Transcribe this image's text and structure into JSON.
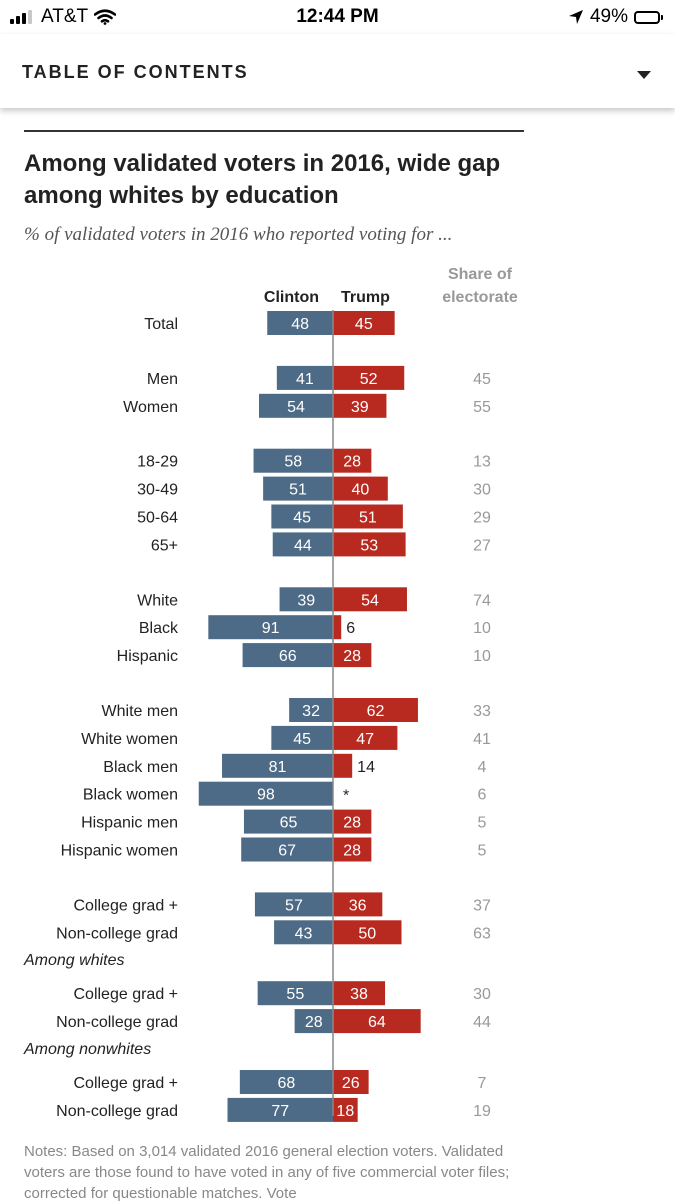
{
  "status_bar": {
    "carrier": "AT&T",
    "time": "12:44 PM",
    "battery": "49%",
    "battery_level": 0.49,
    "signal_bars": 3
  },
  "header": {
    "title": "TABLE OF CONTENTS"
  },
  "chart_data": {
    "type": "bar",
    "title": "Among validated voters in 2016, wide gap among whites by education",
    "subtitle": "% of validated voters in 2016 who reported voting for ...",
    "series": [
      {
        "name": "Clinton",
        "color": "#4d6a86"
      },
      {
        "name": "Trump",
        "color": "#b82a1f"
      }
    ],
    "share_header": "Share of electorate",
    "groups": [
      {
        "heading": "",
        "rows": [
          {
            "label": "Total",
            "clinton": "48",
            "trump": "45",
            "share": ""
          }
        ]
      },
      {
        "heading": "",
        "rows": [
          {
            "label": "Men",
            "clinton": "41",
            "trump": "52",
            "share": "45"
          },
          {
            "label": "Women",
            "clinton": "54",
            "trump": "39",
            "share": "55"
          }
        ]
      },
      {
        "heading": "",
        "rows": [
          {
            "label": "18-29",
            "clinton": "58",
            "trump": "28",
            "share": "13"
          },
          {
            "label": "30-49",
            "clinton": "51",
            "trump": "40",
            "share": "30"
          },
          {
            "label": "50-64",
            "clinton": "45",
            "trump": "51",
            "share": "29"
          },
          {
            "label": "65+",
            "clinton": "44",
            "trump": "53",
            "share": "27"
          }
        ]
      },
      {
        "heading": "",
        "rows": [
          {
            "label": "White",
            "clinton": "39",
            "trump": "54",
            "share": "74"
          },
          {
            "label": "Black",
            "clinton": "91",
            "trump": "6",
            "share": "10"
          },
          {
            "label": "Hispanic",
            "clinton": "66",
            "trump": "28",
            "share": "10"
          }
        ]
      },
      {
        "heading": "",
        "rows": [
          {
            "label": "White men",
            "clinton": "32",
            "trump": "62",
            "share": "33"
          },
          {
            "label": "White women",
            "clinton": "45",
            "trump": "47",
            "share": "41"
          },
          {
            "label": "Black men",
            "clinton": "81",
            "trump": "14",
            "share": "4"
          },
          {
            "label": "Black women",
            "clinton": "98",
            "trump": "*",
            "share": "6"
          },
          {
            "label": "Hispanic men",
            "clinton": "65",
            "trump": "28",
            "share": "5"
          },
          {
            "label": "Hispanic women",
            "clinton": "67",
            "trump": "28",
            "share": "5"
          }
        ]
      },
      {
        "heading": "",
        "rows": [
          {
            "label": "College grad +",
            "clinton": "57",
            "trump": "36",
            "share": "37"
          },
          {
            "label": "Non-college grad",
            "clinton": "43",
            "trump": "50",
            "share": "63"
          }
        ]
      },
      {
        "heading": "Among whites",
        "rows": [
          {
            "label": "College grad +",
            "clinton": "55",
            "trump": "38",
            "share": "30"
          },
          {
            "label": "Non-college grad",
            "clinton": "28",
            "trump": "64",
            "share": "44"
          }
        ]
      },
      {
        "heading": "Among nonwhites",
        "rows": [
          {
            "label": "College grad +",
            "clinton": "68",
            "trump": "26",
            "share": "7"
          },
          {
            "label": "Non-college grad",
            "clinton": "77",
            "trump": "18",
            "share": "19"
          }
        ]
      }
    ]
  },
  "notes": "Notes: Based on 3,014 validated 2016 general election voters. Validated voters are those found to have voted in any of five commercial voter files; corrected for questionable matches. Vote"
}
